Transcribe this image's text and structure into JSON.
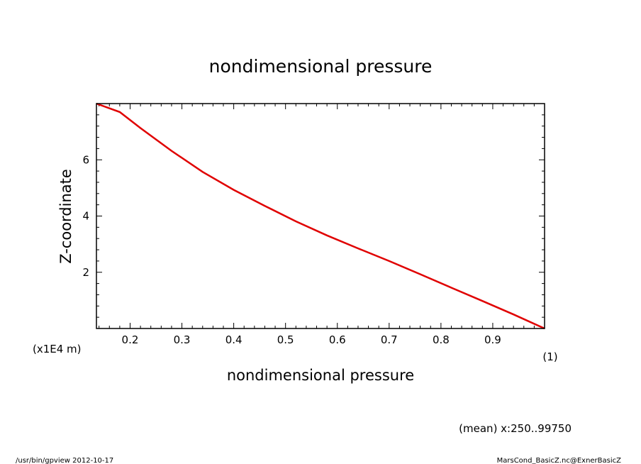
{
  "chart_data": {
    "type": "line",
    "title": "nondimensional pressure",
    "xlabel": "nondimensional pressure",
    "ylabel": "Z-coordinate",
    "x_unit": "(1)",
    "y_unit": "(x1E4 m)",
    "xlim": [
      0.135,
      1.0
    ],
    "ylim": [
      0,
      8
    ],
    "xticks": [
      {
        "value": 0.2,
        "label": "0.2"
      },
      {
        "value": 0.3,
        "label": "0.3"
      },
      {
        "value": 0.4,
        "label": "0.4"
      },
      {
        "value": 0.5,
        "label": "0.5"
      },
      {
        "value": 0.6,
        "label": "0.6"
      },
      {
        "value": 0.7,
        "label": "0.7"
      },
      {
        "value": 0.8,
        "label": "0.8"
      },
      {
        "value": 0.9,
        "label": "0.9"
      }
    ],
    "yticks": [
      {
        "value": 2,
        "label": "2"
      },
      {
        "value": 4,
        "label": "4"
      },
      {
        "value": 6,
        "label": "6"
      }
    ],
    "grid": false,
    "line_color": "#e00000",
    "series": [
      {
        "x": [
          1.0,
          0.94,
          0.88,
          0.82,
          0.76,
          0.7,
          0.64,
          0.58,
          0.52,
          0.46,
          0.4,
          0.34,
          0.28,
          0.22,
          0.18,
          0.135
        ],
        "y": [
          0.0,
          0.5,
          0.98,
          1.45,
          1.93,
          2.4,
          2.85,
          3.31,
          3.81,
          4.36,
          4.93,
          5.57,
          6.32,
          7.13,
          7.7,
          8.0
        ]
      }
    ]
  },
  "footer": {
    "mean_note": "(mean) x:250..99750",
    "program": "/usr/bin/gpview   2012-10-17",
    "source": "MarsCond_BasicZ.nc@ExnerBasicZ"
  }
}
